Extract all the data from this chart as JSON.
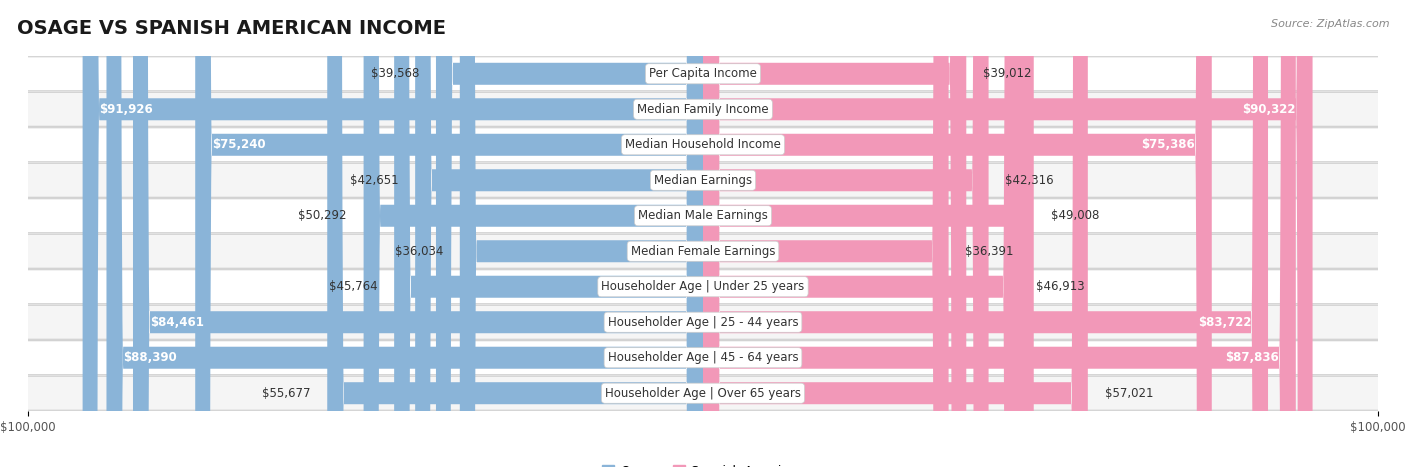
{
  "title": "OSAGE VS SPANISH AMERICAN INCOME",
  "source": "Source: ZipAtlas.com",
  "categories": [
    "Per Capita Income",
    "Median Family Income",
    "Median Household Income",
    "Median Earnings",
    "Median Male Earnings",
    "Median Female Earnings",
    "Householder Age | Under 25 years",
    "Householder Age | 25 - 44 years",
    "Householder Age | 45 - 64 years",
    "Householder Age | Over 65 years"
  ],
  "osage_values": [
    39568,
    91926,
    75240,
    42651,
    50292,
    36034,
    45764,
    84461,
    88390,
    55677
  ],
  "spanish_values": [
    39012,
    90322,
    75386,
    42316,
    49008,
    36391,
    46913,
    83722,
    87836,
    57021
  ],
  "osage_labels": [
    "$39,568",
    "$91,926",
    "$75,240",
    "$42,651",
    "$50,292",
    "$36,034",
    "$45,764",
    "$84,461",
    "$88,390",
    "$55,677"
  ],
  "spanish_labels": [
    "$39,012",
    "$90,322",
    "$75,386",
    "$42,316",
    "$49,008",
    "$36,391",
    "$46,913",
    "$83,722",
    "$87,836",
    "$57,021"
  ],
  "max_value": 100000,
  "osage_color": "#8ab4d8",
  "spanish_color": "#f298b8",
  "row_bg_light": "#f5f5f5",
  "row_bg_white": "#ffffff",
  "row_border": "#cccccc",
  "bar_height": 0.62,
  "title_fontsize": 14,
  "label_fontsize": 8.5,
  "cat_label_fontsize": 8.5,
  "axis_label_fontsize": 8.5,
  "legend_fontsize": 9,
  "source_fontsize": 8,
  "osage_threshold": 62000,
  "spanish_threshold": 62000
}
